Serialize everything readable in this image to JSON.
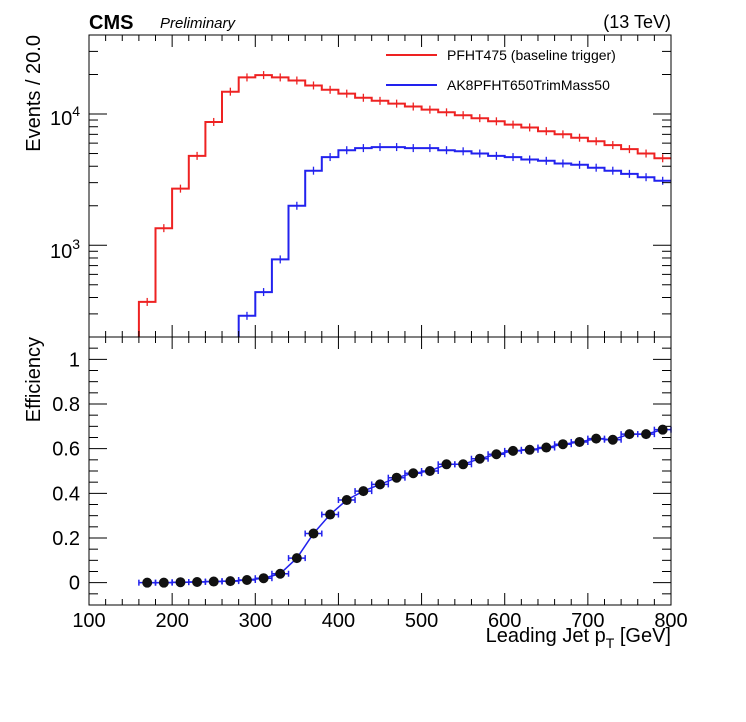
{
  "header": {
    "experiment": "CMS",
    "status": "Preliminary",
    "energy": "(13 TeV)"
  },
  "colors": {
    "baseline": "#ee2222",
    "signal": "#2222ee",
    "marker": "#111111"
  },
  "chart_data": [
    {
      "type": "line",
      "step": true,
      "ylabel": "Events / 20.0",
      "yscale": "log",
      "ylim": [
        200,
        40000
      ],
      "xlim": [
        100,
        800
      ],
      "y_tick_labels": [
        {
          "base": "10",
          "exp": "3",
          "value": 1000
        },
        {
          "base": "10",
          "exp": "4",
          "value": 10000
        }
      ],
      "legend_position": "top-right",
      "bin_edges": [
        100,
        120,
        140,
        160,
        180,
        200,
        220,
        240,
        260,
        280,
        300,
        320,
        340,
        360,
        380,
        400,
        420,
        440,
        460,
        480,
        500,
        520,
        540,
        560,
        580,
        600,
        620,
        640,
        660,
        680,
        700,
        720,
        740,
        760,
        780,
        800
      ],
      "series": [
        {
          "name": "PFHT475 (baseline trigger)",
          "color": "#ee2222",
          "values": [
            null,
            null,
            null,
            370,
            1350,
            2700,
            4800,
            8700,
            14800,
            19000,
            19800,
            19000,
            18000,
            16500,
            15300,
            14300,
            13300,
            12600,
            12000,
            11400,
            10800,
            10300,
            9800,
            9300,
            8800,
            8300,
            7900,
            7400,
            7000,
            6600,
            6200,
            5800,
            5400,
            5000,
            4600
          ]
        },
        {
          "name": "AK8PFHT650TrimMass50",
          "color": "#2222ee",
          "values": [
            null,
            null,
            null,
            null,
            null,
            null,
            null,
            null,
            null,
            290,
            440,
            780,
            2000,
            3700,
            4700,
            5300,
            5500,
            5600,
            5600,
            5500,
            5500,
            5300,
            5200,
            5000,
            4800,
            4700,
            4500,
            4400,
            4200,
            4100,
            3900,
            3700,
            3500,
            3300,
            3100
          ]
        }
      ]
    },
    {
      "type": "scatter",
      "ylabel": "Efficiency",
      "xlabel_main": "Leading Jet p",
      "xlabel_sub": "T",
      "xlabel_unit": " [GeV]",
      "ylim": [
        -0.1,
        1.1
      ],
      "xlim": [
        100,
        800
      ],
      "x_ticks": [
        100,
        200,
        300,
        400,
        500,
        600,
        700,
        800
      ],
      "y_ticks": [
        0,
        0.2,
        0.4,
        0.6,
        0.8,
        1
      ],
      "x_ticks_text": [
        "100",
        "200",
        "300",
        "400",
        "500",
        "600",
        "700",
        "800"
      ],
      "y_ticks_text": [
        "0",
        "0.2",
        "0.4",
        "0.6",
        "0.8",
        "1"
      ],
      "x_half_width": 10,
      "points": [
        {
          "x": 170,
          "y": 0.0
        },
        {
          "x": 190,
          "y": 0.0
        },
        {
          "x": 210,
          "y": 0.002
        },
        {
          "x": 230,
          "y": 0.003
        },
        {
          "x": 250,
          "y": 0.005
        },
        {
          "x": 270,
          "y": 0.007
        },
        {
          "x": 290,
          "y": 0.012
        },
        {
          "x": 310,
          "y": 0.02
        },
        {
          "x": 330,
          "y": 0.04
        },
        {
          "x": 350,
          "y": 0.11
        },
        {
          "x": 370,
          "y": 0.22
        },
        {
          "x": 390,
          "y": 0.305
        },
        {
          "x": 410,
          "y": 0.37
        },
        {
          "x": 430,
          "y": 0.41
        },
        {
          "x": 450,
          "y": 0.44
        },
        {
          "x": 470,
          "y": 0.47
        },
        {
          "x": 490,
          "y": 0.49
        },
        {
          "x": 510,
          "y": 0.5
        },
        {
          "x": 530,
          "y": 0.53
        },
        {
          "x": 550,
          "y": 0.53
        },
        {
          "x": 570,
          "y": 0.555
        },
        {
          "x": 590,
          "y": 0.575
        },
        {
          "x": 610,
          "y": 0.59
        },
        {
          "x": 630,
          "y": 0.595
        },
        {
          "x": 650,
          "y": 0.605
        },
        {
          "x": 670,
          "y": 0.62
        },
        {
          "x": 690,
          "y": 0.63
        },
        {
          "x": 710,
          "y": 0.645
        },
        {
          "x": 730,
          "y": 0.64
        },
        {
          "x": 750,
          "y": 0.665
        },
        {
          "x": 770,
          "y": 0.665
        },
        {
          "x": 790,
          "y": 0.685
        }
      ]
    }
  ]
}
